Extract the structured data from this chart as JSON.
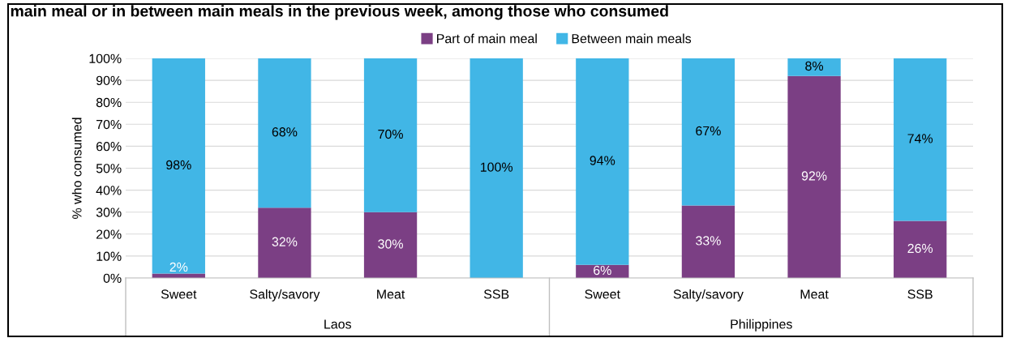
{
  "chart_data": {
    "type": "bar",
    "stacked": true,
    "title": "main meal or in between main meals in the previous week, among those who consumed",
    "ylabel": "% who consumed",
    "categories": [
      "Sweet",
      "Salty/savory",
      "Meat",
      "SSB",
      "Sweet",
      "Salty/savory",
      "Meat",
      "SSB"
    ],
    "annotations": [
      "Laos",
      "Philippines"
    ],
    "series": [
      {
        "name": "Part of main meal",
        "color": "#7b3f84",
        "values": [
          2,
          32,
          30,
          0,
          6,
          33,
          92,
          26
        ],
        "value_labels": [
          "2%",
          "32%",
          "30%",
          null,
          "6%",
          "33%",
          "92%",
          "26%"
        ]
      },
      {
        "name": "Between main meals",
        "color": "#41b6e6",
        "values": [
          98,
          68,
          70,
          100,
          94,
          67,
          8,
          74
        ],
        "value_labels": [
          "98%",
          "68%",
          "70%",
          "100%",
          "94%",
          "67%",
          "8%",
          "74%"
        ]
      }
    ],
    "ylim": [
      0,
      100
    ],
    "yticks": [
      {
        "value": 0,
        "label": "0%"
      },
      {
        "value": 10,
        "label": "10%"
      },
      {
        "value": 20,
        "label": "20%"
      },
      {
        "value": 30,
        "label": "30%"
      },
      {
        "value": 40,
        "label": "40%"
      },
      {
        "value": 50,
        "label": "50%"
      },
      {
        "value": 60,
        "label": "60%"
      },
      {
        "value": 70,
        "label": "70%"
      },
      {
        "value": 80,
        "label": "80%"
      },
      {
        "value": 90,
        "label": "90%"
      },
      {
        "value": 100,
        "label": "100%"
      }
    ],
    "grid": "y",
    "legend": "top"
  }
}
